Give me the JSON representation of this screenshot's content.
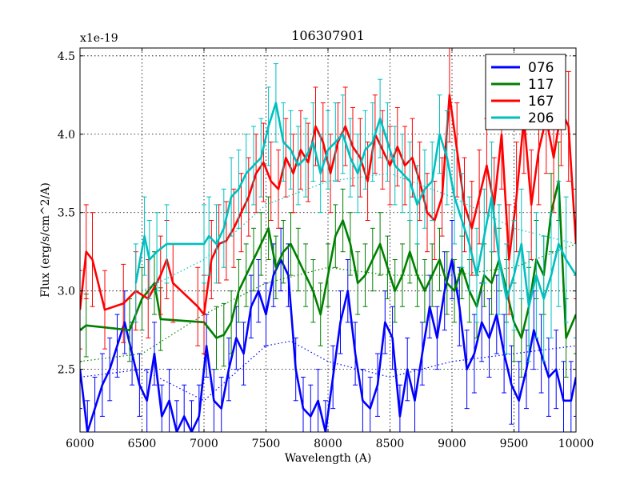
{
  "chart_data": {
    "type": "line",
    "title": "106307901",
    "xlabel": "Wavelength (A)",
    "ylabel": "Flux (erg/s/cm^2/A)",
    "y_scale_label": "x1e-19",
    "xlim": [
      6000,
      10000
    ],
    "ylim": [
      2.1,
      4.55
    ],
    "xticks": [
      6000,
      6500,
      7000,
      7500,
      8000,
      8500,
      9000,
      9500,
      10000
    ],
    "yticks": [
      2.5,
      3.0,
      3.5,
      4.0,
      4.5
    ],
    "ytick_labels": [
      "2.5",
      "3.0",
      "3.5",
      "4.0",
      "4.5"
    ],
    "grid": true,
    "legend_position": "top-right",
    "series": [
      {
        "name": "076",
        "color": "#0000ff",
        "x": [
          6000,
          6060,
          6120,
          6180,
          6240,
          6300,
          6360,
          6420,
          6480,
          6540,
          6600,
          6660,
          6720,
          6780,
          6840,
          6900,
          6960,
          7020,
          7080,
          7140,
          7200,
          7260,
          7320,
          7380,
          7440,
          7500,
          7560,
          7620,
          7680,
          7740,
          7800,
          7860,
          7920,
          7980,
          8040,
          8100,
          8160,
          8220,
          8280,
          8340,
          8400,
          8460,
          8520,
          8580,
          8640,
          8700,
          8760,
          8820,
          8880,
          8940,
          9000,
          9060,
          9120,
          9180,
          9240,
          9300,
          9360,
          9420,
          9480,
          9540,
          9600,
          9660,
          9720,
          9780,
          9840,
          9900,
          9960,
          10000
        ],
        "y": [
          2.5,
          2.1,
          2.25,
          2.4,
          2.5,
          2.65,
          2.8,
          2.6,
          2.4,
          2.3,
          2.6,
          2.2,
          2.3,
          2.1,
          2.2,
          2.1,
          2.2,
          2.65,
          2.3,
          2.25,
          2.5,
          2.7,
          2.6,
          2.9,
          3.0,
          2.85,
          3.1,
          3.2,
          3.1,
          2.5,
          2.25,
          2.2,
          2.3,
          2.1,
          2.45,
          2.8,
          3.0,
          2.6,
          2.3,
          2.25,
          2.4,
          2.8,
          2.7,
          2.2,
          2.5,
          2.3,
          2.6,
          2.9,
          2.7,
          3.0,
          3.2,
          2.9,
          2.5,
          2.6,
          2.8,
          2.7,
          2.85,
          2.6,
          2.4,
          2.3,
          2.5,
          2.75,
          2.6,
          2.45,
          2.5,
          2.3,
          2.3,
          2.45
        ],
        "err": [
          0.25,
          0.2,
          0.2,
          0.2,
          0.2,
          0.2,
          0.2,
          0.2,
          0.2,
          0.2,
          0.2,
          0.2,
          0.2,
          0.2,
          0.2,
          0.2,
          0.2,
          0.2,
          0.2,
          0.2,
          0.2,
          0.2,
          0.2,
          0.2,
          0.2,
          0.2,
          0.2,
          0.2,
          0.2,
          0.2,
          0.2,
          0.2,
          0.2,
          0.2,
          0.2,
          0.2,
          0.2,
          0.2,
          0.2,
          0.2,
          0.2,
          0.2,
          0.2,
          0.2,
          0.2,
          0.2,
          0.2,
          0.2,
          0.2,
          0.25,
          0.25,
          0.25,
          0.25,
          0.25,
          0.25,
          0.25,
          0.25,
          0.25,
          0.25,
          0.25,
          0.25,
          0.25,
          0.25,
          0.25,
          0.25,
          0.25,
          0.25,
          0.25
        ],
        "model_x": [
          6000,
          6500,
          7000,
          7500,
          7700,
          8000,
          8500,
          9000,
          9500,
          10000
        ],
        "model_y": [
          2.45,
          2.5,
          2.3,
          2.65,
          2.68,
          2.55,
          2.45,
          2.55,
          2.6,
          2.65
        ]
      },
      {
        "name": "117",
        "color": "#008000",
        "x": [
          6000,
          6050,
          6400,
          6500,
          6600,
          6650,
          7000,
          7100,
          7160,
          7220,
          7280,
          7340,
          7400,
          7460,
          7520,
          7580,
          7640,
          7700,
          7760,
          7820,
          7880,
          7940,
          8000,
          8060,
          8120,
          8180,
          8240,
          8300,
          8360,
          8420,
          8480,
          8540,
          8600,
          8660,
          8720,
          8780,
          8840,
          8900,
          8960,
          9020,
          9080,
          9140,
          9200,
          9260,
          9320,
          9380,
          9440,
          9500,
          9560,
          9620,
          9680,
          9740,
          9800,
          9860,
          9920,
          10000
        ],
        "y": [
          2.75,
          2.78,
          2.75,
          2.95,
          3.05,
          2.82,
          2.8,
          2.7,
          2.72,
          2.8,
          3.0,
          3.1,
          3.2,
          3.3,
          3.4,
          3.15,
          3.25,
          3.3,
          3.2,
          3.1,
          3.0,
          2.85,
          3.1,
          3.35,
          3.45,
          3.3,
          3.05,
          3.1,
          3.2,
          3.3,
          3.15,
          3.0,
          3.1,
          3.25,
          3.1,
          3.0,
          3.1,
          3.2,
          3.05,
          3.0,
          3.15,
          3.0,
          2.9,
          3.1,
          3.05,
          3.2,
          3.0,
          2.8,
          2.7,
          2.9,
          3.2,
          3.1,
          3.5,
          3.7,
          2.7,
          2.85
        ],
        "err": [
          0.2,
          0.2,
          0.2,
          0.2,
          0.2,
          0.2,
          0.2,
          0.2,
          0.2,
          0.2,
          0.2,
          0.2,
          0.2,
          0.2,
          0.2,
          0.2,
          0.2,
          0.2,
          0.2,
          0.2,
          0.2,
          0.2,
          0.2,
          0.2,
          0.2,
          0.2,
          0.2,
          0.2,
          0.2,
          0.2,
          0.2,
          0.2,
          0.2,
          0.2,
          0.2,
          0.2,
          0.2,
          0.2,
          0.2,
          0.2,
          0.2,
          0.2,
          0.2,
          0.2,
          0.2,
          0.2,
          0.2,
          0.25,
          0.25,
          0.25,
          0.25,
          0.25,
          0.25,
          0.25,
          0.25,
          0.25
        ],
        "model_x": [
          6000,
          6500,
          7000,
          7500,
          8000,
          8500,
          9000,
          9500,
          10000
        ],
        "model_y": [
          2.55,
          2.6,
          2.85,
          3.05,
          3.15,
          3.1,
          3.1,
          3.15,
          3.3
        ]
      },
      {
        "name": "167",
        "color": "#ff0000",
        "x": [
          6000,
          6050,
          6100,
          6200,
          6350,
          6450,
          6550,
          6650,
          6700,
          6750,
          6950,
          7000,
          7060,
          7120,
          7180,
          7240,
          7300,
          7360,
          7420,
          7480,
          7540,
          7600,
          7660,
          7720,
          7780,
          7840,
          7900,
          7960,
          8020,
          8080,
          8140,
          8200,
          8260,
          8320,
          8380,
          8440,
          8500,
          8560,
          8620,
          8680,
          8740,
          8800,
          8860,
          8920,
          8980,
          9040,
          9100,
          9160,
          9220,
          9280,
          9340,
          9400,
          9460,
          9520,
          9580,
          9640,
          9700,
          9760,
          9820,
          9880,
          9940,
          10000
        ],
        "y": [
          2.88,
          3.25,
          3.2,
          2.88,
          2.92,
          3.0,
          2.95,
          3.1,
          3.2,
          3.05,
          2.9,
          2.85,
          3.2,
          3.3,
          3.32,
          3.4,
          3.5,
          3.6,
          3.75,
          3.82,
          3.7,
          3.65,
          3.85,
          3.75,
          3.9,
          3.82,
          4.05,
          3.95,
          3.75,
          3.95,
          4.05,
          3.92,
          3.85,
          3.7,
          4.0,
          3.9,
          3.8,
          3.92,
          3.8,
          3.85,
          3.7,
          3.5,
          3.45,
          3.6,
          4.25,
          3.9,
          3.55,
          3.4,
          3.6,
          3.8,
          3.55,
          4.0,
          3.2,
          3.6,
          4.1,
          3.55,
          3.9,
          4.1,
          3.85,
          4.15,
          4.05,
          3.3
        ],
        "err": [
          0.25,
          0.3,
          0.3,
          0.25,
          0.25,
          0.25,
          0.25,
          0.25,
          0.25,
          0.25,
          0.25,
          0.25,
          0.25,
          0.25,
          0.25,
          0.25,
          0.25,
          0.25,
          0.25,
          0.25,
          0.25,
          0.25,
          0.25,
          0.25,
          0.25,
          0.25,
          0.25,
          0.25,
          0.25,
          0.25,
          0.25,
          0.25,
          0.25,
          0.25,
          0.25,
          0.25,
          0.25,
          0.25,
          0.25,
          0.25,
          0.25,
          0.25,
          0.25,
          0.25,
          0.3,
          0.3,
          0.3,
          0.3,
          0.3,
          0.3,
          0.3,
          0.35,
          0.35,
          0.35,
          0.35,
          0.35,
          0.35,
          0.35,
          0.35,
          0.35,
          0.35,
          0.35
        ]
      },
      {
        "name": "206",
        "color": "#00bfbf",
        "x": [
          6450,
          6520,
          6560,
          6620,
          6700,
          7000,
          7040,
          7100,
          7160,
          7220,
          7280,
          7340,
          7400,
          7460,
          7520,
          7580,
          7640,
          7700,
          7760,
          7820,
          7880,
          7940,
          8000,
          8060,
          8120,
          8180,
          8240,
          8300,
          8360,
          8420,
          8480,
          8540,
          8600,
          8660,
          8720,
          8780,
          8840,
          8900,
          8960,
          9020,
          9080,
          9140,
          9200,
          9260,
          9320,
          9380,
          9440,
          9500,
          9560,
          9620,
          9680,
          9740,
          9800,
          9860,
          9920,
          10000
        ],
        "y": [
          3.05,
          3.35,
          3.2,
          3.25,
          3.3,
          3.3,
          3.35,
          3.3,
          3.4,
          3.6,
          3.65,
          3.75,
          3.8,
          3.85,
          4.05,
          4.2,
          3.95,
          3.9,
          3.8,
          3.85,
          3.95,
          3.75,
          3.9,
          3.95,
          4.0,
          3.85,
          3.75,
          3.9,
          3.95,
          4.1,
          3.95,
          3.8,
          3.75,
          3.7,
          3.55,
          3.65,
          3.7,
          4.0,
          3.85,
          3.6,
          3.45,
          3.3,
          3.1,
          3.35,
          3.6,
          3.2,
          2.95,
          3.1,
          3.3,
          2.9,
          3.1,
          2.95,
          3.1,
          3.3,
          3.2,
          3.1
        ],
        "err": [
          0.25,
          0.25,
          0.25,
          0.25,
          0.25,
          0.25,
          0.25,
          0.25,
          0.25,
          0.25,
          0.25,
          0.25,
          0.25,
          0.25,
          0.25,
          0.25,
          0.25,
          0.25,
          0.25,
          0.25,
          0.25,
          0.25,
          0.25,
          0.25,
          0.25,
          0.25,
          0.25,
          0.25,
          0.25,
          0.25,
          0.25,
          0.25,
          0.25,
          0.25,
          0.25,
          0.25,
          0.25,
          0.25,
          0.3,
          0.3,
          0.3,
          0.3,
          0.3,
          0.3,
          0.35,
          0.35,
          0.35,
          0.35,
          0.35,
          0.35,
          0.4,
          0.4,
          0.4,
          0.4,
          0.4,
          0.4
        ],
        "model_x": [
          6500,
          7000,
          7500,
          8000,
          8500,
          9000,
          9500,
          10000
        ],
        "model_y": [
          3.0,
          3.2,
          3.55,
          3.7,
          3.75,
          3.6,
          3.4,
          3.3
        ]
      }
    ]
  }
}
